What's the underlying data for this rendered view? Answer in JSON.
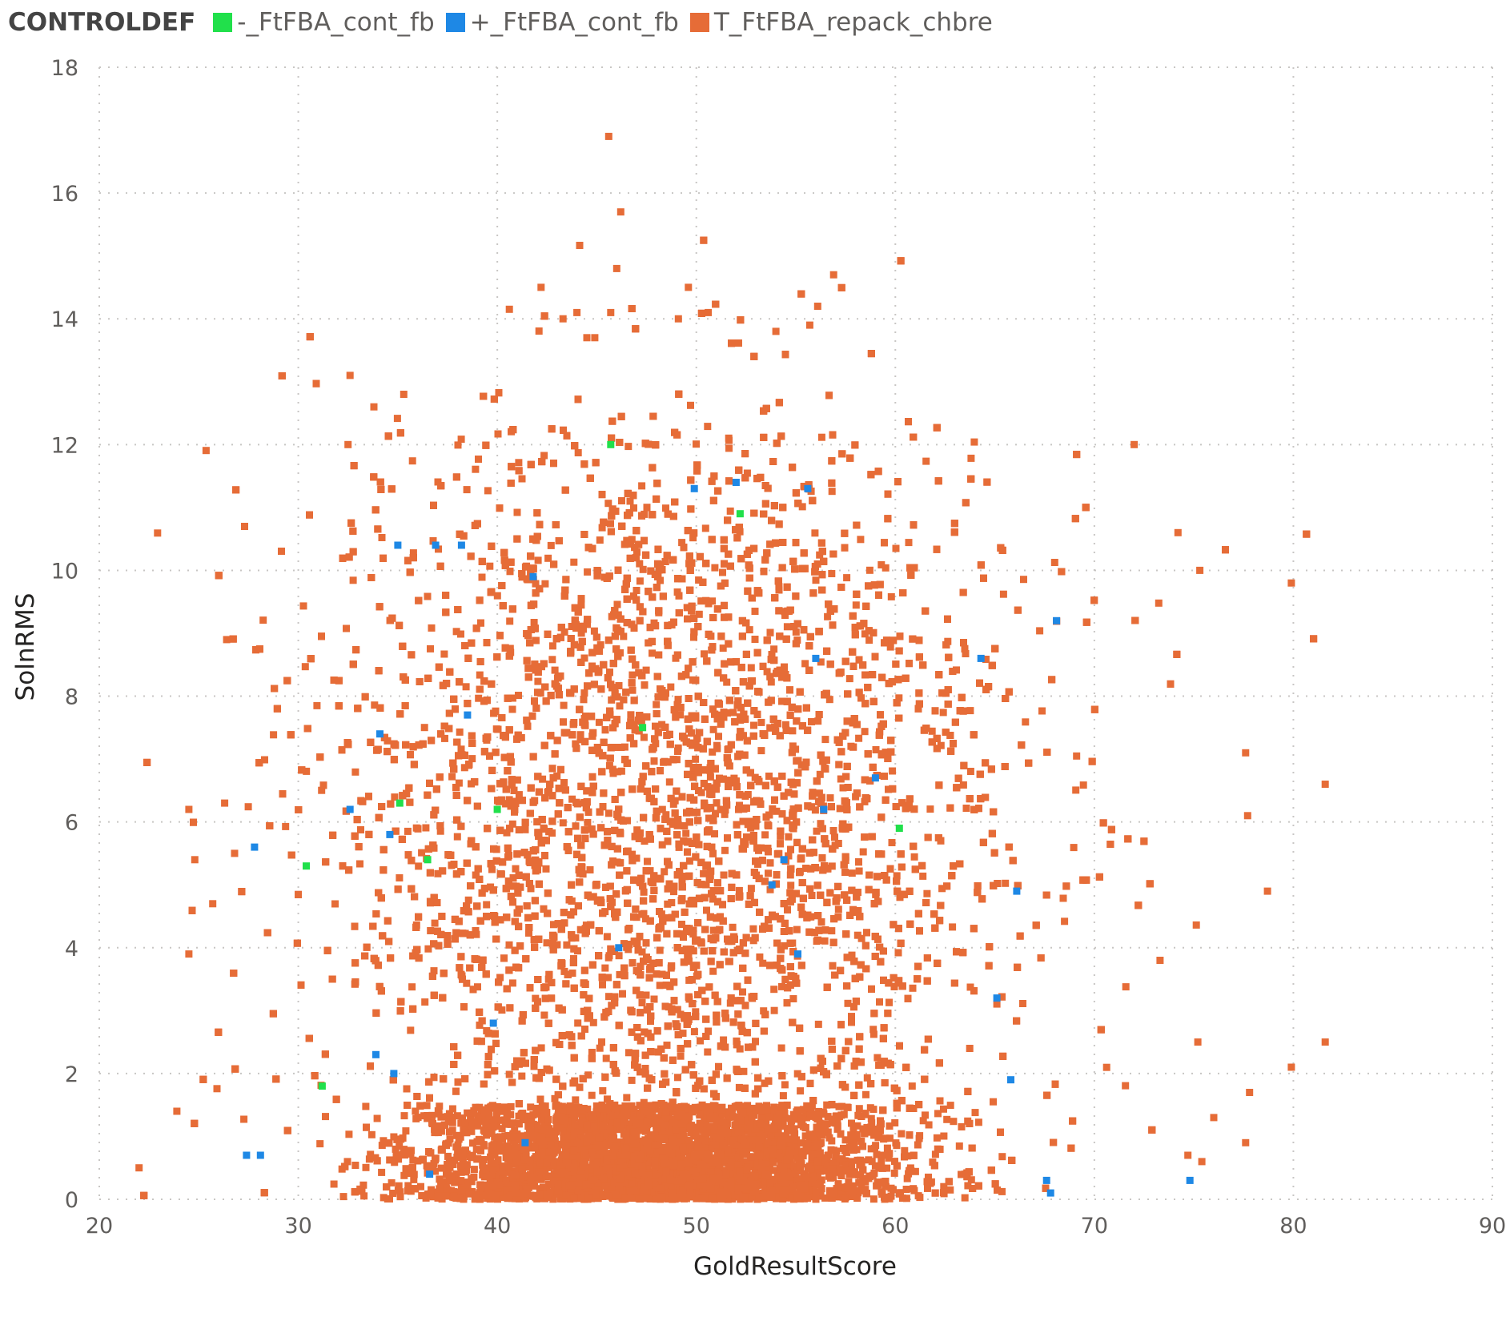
{
  "chart_data": {
    "type": "scatter",
    "legend": {
      "title": "CONTROLDEF",
      "placement": "top-left",
      "entries": [
        {
          "label": "-_FtFBA_cont_fb",
          "color": "#21e04b"
        },
        {
          "label": "+_FtFBA_cont_fb",
          "color": "#1e88e5"
        },
        {
          "label": "T_FtFBA_repack_chbre",
          "color": "#e66c37"
        }
      ]
    },
    "xlabel": "GoldResultScore",
    "ylabel": "SolnRMS",
    "xlim": [
      20,
      90
    ],
    "ylim": [
      0,
      18
    ],
    "xticks": [
      "20",
      "30",
      "40",
      "50",
      "60",
      "70",
      "80",
      "90"
    ],
    "yticks": [
      "0",
      "2",
      "4",
      "6",
      "8",
      "10",
      "12",
      "14",
      "16",
      "18"
    ],
    "grid": true,
    "series": [
      {
        "name": "-_FtFBA_cont_fb",
        "color": "#21e04b",
        "points": [
          [
            45.7,
            12.0
          ],
          [
            52.2,
            10.9
          ],
          [
            47.3,
            7.5
          ],
          [
            35.1,
            6.3
          ],
          [
            40.0,
            6.2
          ],
          [
            60.2,
            5.9
          ],
          [
            36.5,
            5.4
          ],
          [
            30.4,
            5.3
          ],
          [
            31.2,
            1.8
          ]
        ]
      },
      {
        "name": "+_FtFBA_cont_fb",
        "color": "#1e88e5",
        "points": [
          [
            49.9,
            11.3
          ],
          [
            52.0,
            11.4
          ],
          [
            55.6,
            11.3
          ],
          [
            35.0,
            10.4
          ],
          [
            36.9,
            10.4
          ],
          [
            38.2,
            10.4
          ],
          [
            41.8,
            9.9
          ],
          [
            68.1,
            9.2
          ],
          [
            56.0,
            8.6
          ],
          [
            64.3,
            8.6
          ],
          [
            38.5,
            7.7
          ],
          [
            34.1,
            7.4
          ],
          [
            59.0,
            6.7
          ],
          [
            32.6,
            6.2
          ],
          [
            56.4,
            6.2
          ],
          [
            34.6,
            5.8
          ],
          [
            27.8,
            5.6
          ],
          [
            54.4,
            5.4
          ],
          [
            53.8,
            5.0
          ],
          [
            66.1,
            4.9
          ],
          [
            46.1,
            4.0
          ],
          [
            55.1,
            3.9
          ],
          [
            65.1,
            3.2
          ],
          [
            39.8,
            2.8
          ],
          [
            33.9,
            2.3
          ],
          [
            34.8,
            2.0
          ],
          [
            65.8,
            1.9
          ],
          [
            41.4,
            0.9
          ],
          [
            27.4,
            0.7
          ],
          [
            28.1,
            0.7
          ],
          [
            36.6,
            0.4
          ],
          [
            67.6,
            0.3
          ],
          [
            67.8,
            0.1
          ],
          [
            74.8,
            0.3
          ]
        ]
      },
      {
        "name": "T_FtFBA_repack_chbre",
        "color": "#e66c37",
        "count": 14000,
        "points": [
          [
            45.6,
            16.9
          ],
          [
            46.2,
            15.7
          ],
          [
            46.0,
            14.8
          ],
          [
            56.9,
            14.7
          ],
          [
            42.2,
            14.5
          ],
          [
            49.6,
            14.5
          ],
          [
            56.1,
            14.2
          ],
          [
            45.7,
            14.1
          ],
          [
            44.0,
            14.1
          ],
          [
            50.6,
            14.1
          ],
          [
            43.3,
            14.0
          ],
          [
            49.1,
            14.0
          ],
          [
            55.7,
            13.9
          ],
          [
            54.0,
            13.8
          ],
          [
            44.9,
            13.7
          ],
          [
            44.5,
            13.7
          ],
          [
            32.6,
            13.1
          ],
          [
            33.8,
            12.6
          ],
          [
            35.3,
            12.8
          ],
          [
            32.5,
            12.0
          ],
          [
            72.0,
            12.0
          ],
          [
            27.3,
            10.7
          ],
          [
            74.2,
            10.6
          ],
          [
            75.3,
            10.0
          ],
          [
            79.9,
            9.8
          ],
          [
            81.6,
            6.6
          ],
          [
            77.6,
            7.1
          ],
          [
            77.7,
            6.1
          ],
          [
            78.7,
            4.9
          ],
          [
            73.3,
            3.8
          ],
          [
            75.2,
            2.5
          ],
          [
            79.9,
            2.1
          ],
          [
            81.6,
            2.5
          ],
          [
            77.8,
            1.7
          ],
          [
            76.0,
            1.3
          ],
          [
            77.6,
            0.9
          ],
          [
            74.7,
            0.7
          ],
          [
            75.4,
            0.6
          ],
          [
            22.0,
            0.5
          ],
          [
            23.9,
            1.4
          ],
          [
            24.5,
            3.9
          ],
          [
            24.5,
            6.2
          ],
          [
            24.8,
            5.4
          ],
          [
            25.7,
            4.7
          ],
          [
            26.3,
            6.3
          ],
          [
            26.4,
            8.9
          ],
          [
            26.8,
            5.5
          ]
        ],
        "cluster": {
          "x_center": 48.5,
          "x_spread": 8.5,
          "y_center": 6.0,
          "y_spread": 3.6,
          "dense_band_y": [
            0,
            1.5
          ],
          "dense_band_x": [
            30,
            66
          ]
        }
      }
    ]
  }
}
